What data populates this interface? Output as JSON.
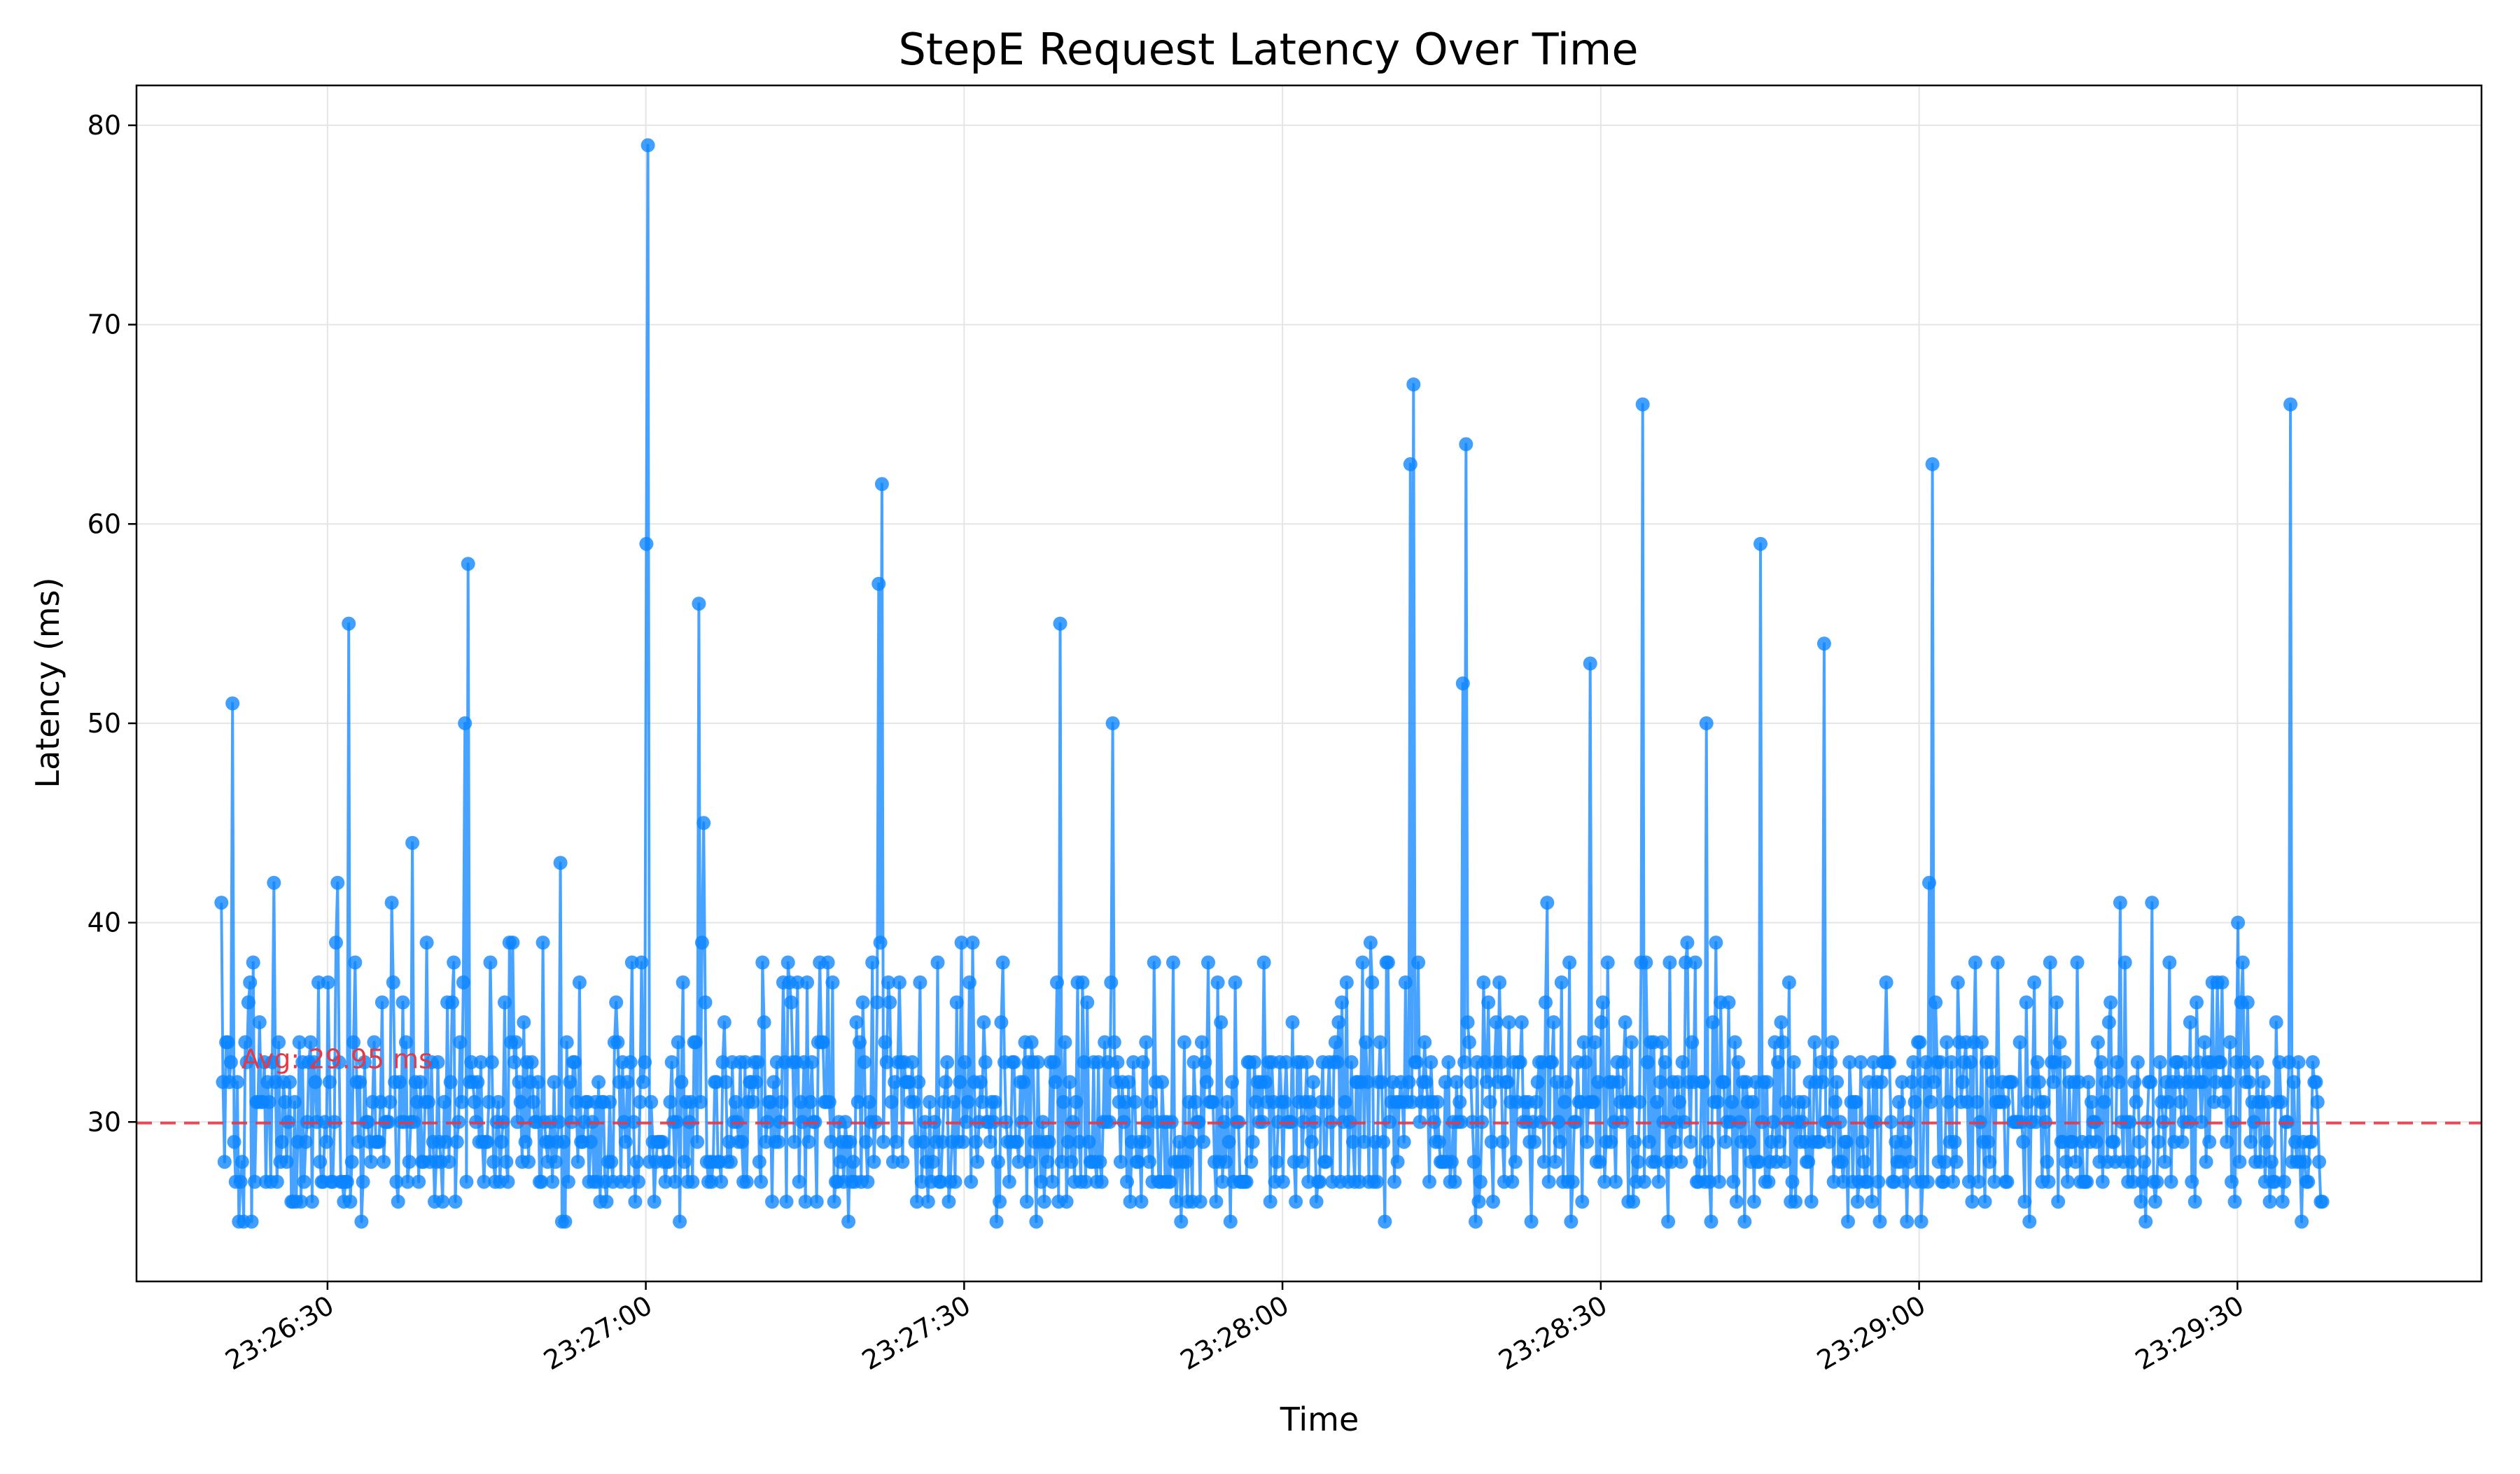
{
  "chart_data": {
    "type": "line",
    "title": "StepE Request Latency Over Time",
    "xlabel": "Time",
    "ylabel": "Latency (ms)",
    "x_range": [
      "23:26:12",
      "23:29:53"
    ],
    "ylim": [
      22,
      82
    ],
    "grid": true,
    "x_ticks": [
      "23:26:30",
      "23:27:00",
      "23:27:30",
      "23:28:00",
      "23:28:30",
      "23:29:00",
      "23:29:30"
    ],
    "y_ticks": [
      30,
      40,
      50,
      60,
      70,
      80
    ],
    "colors": {
      "series": "#0a84ff",
      "avg_line": "#e63946",
      "grid": "#e5e5e5"
    },
    "baseline": {
      "value": 29.95,
      "label": "Avg: 29.95 ms",
      "style": "dashed"
    },
    "data_start": "23:26:20",
    "data_end": "23:29:38",
    "sample_interval_s": 0.15,
    "typical_range": [
      26,
      34
    ],
    "spikes": [
      {
        "t": "23:26:20",
        "v": 41
      },
      {
        "t": "23:26:21",
        "v": 51
      },
      {
        "t": "23:26:25",
        "v": 42
      },
      {
        "t": "23:26:31",
        "v": 42
      },
      {
        "t": "23:26:32",
        "v": 55
      },
      {
        "t": "23:26:36",
        "v": 41
      },
      {
        "t": "23:26:38",
        "v": 44
      },
      {
        "t": "23:26:43",
        "v": 50
      },
      {
        "t": "23:26:43.3",
        "v": 58
      },
      {
        "t": "23:26:52",
        "v": 43
      },
      {
        "t": "23:27:00",
        "v": 59
      },
      {
        "t": "23:27:00.2",
        "v": 79
      },
      {
        "t": "23:27:05",
        "v": 56
      },
      {
        "t": "23:27:05.5",
        "v": 45
      },
      {
        "t": "23:27:22",
        "v": 57
      },
      {
        "t": "23:27:22.3",
        "v": 62
      },
      {
        "t": "23:27:39",
        "v": 55
      },
      {
        "t": "23:27:44",
        "v": 50
      },
      {
        "t": "23:28:12",
        "v": 63
      },
      {
        "t": "23:28:12.3",
        "v": 67
      },
      {
        "t": "23:28:17",
        "v": 52
      },
      {
        "t": "23:28:17.3",
        "v": 64
      },
      {
        "t": "23:28:25",
        "v": 41
      },
      {
        "t": "23:28:29",
        "v": 53
      },
      {
        "t": "23:28:34",
        "v": 66
      },
      {
        "t": "23:28:40",
        "v": 50
      },
      {
        "t": "23:28:45",
        "v": 59
      },
      {
        "t": "23:28:51",
        "v": 54
      },
      {
        "t": "23:29:01",
        "v": 42
      },
      {
        "t": "23:29:01.3",
        "v": 63
      },
      {
        "t": "23:29:19",
        "v": 41
      },
      {
        "t": "23:29:22",
        "v": 41
      },
      {
        "t": "23:29:30",
        "v": 40
      },
      {
        "t": "23:29:35",
        "v": 66
      }
    ]
  }
}
